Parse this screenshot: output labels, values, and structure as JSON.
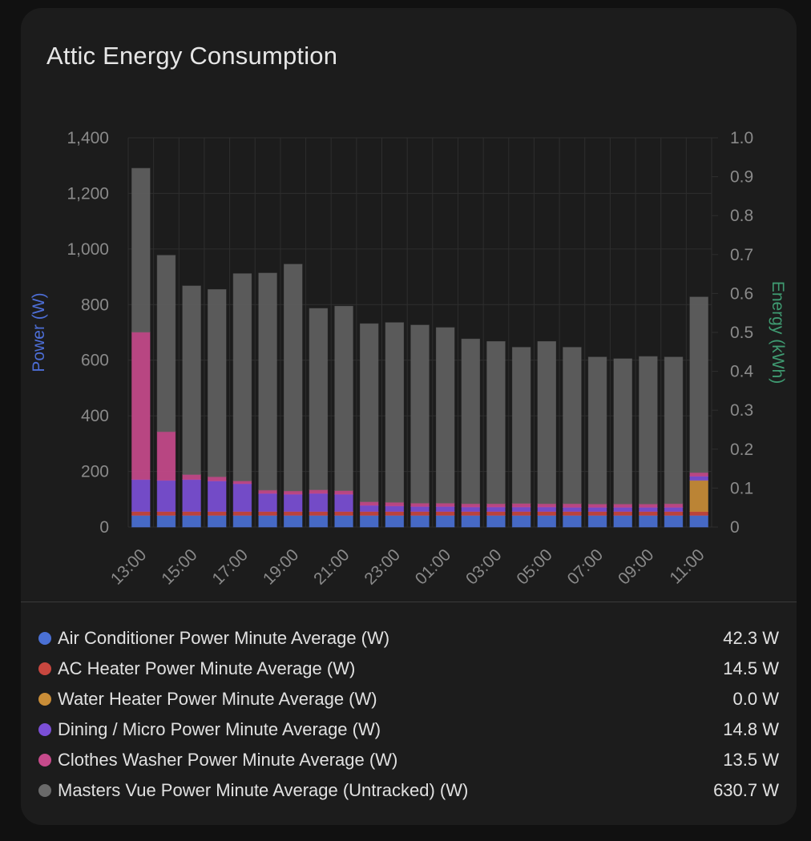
{
  "card": {
    "title": "Attic Energy Consumption"
  },
  "colors": {
    "background": "#1c1c1c",
    "grid": "#2e2e2e",
    "tick_text": "#8a8a8a",
    "left_axis_label": "#4d6ed6",
    "right_axis_label": "#3f9a71"
  },
  "chart_data": {
    "type": "bar",
    "stacked": true,
    "categories": [
      "13:00",
      "14:00",
      "15:00",
      "16:00",
      "17:00",
      "18:00",
      "19:00",
      "20:00",
      "21:00",
      "22:00",
      "23:00",
      "00:00",
      "01:00",
      "02:00",
      "03:00",
      "04:00",
      "05:00",
      "06:00",
      "07:00",
      "08:00",
      "09:00",
      "10:00",
      "11:00"
    ],
    "x_tick_labels": [
      "13:00",
      "15:00",
      "17:00",
      "19:00",
      "21:00",
      "23:00",
      "01:00",
      "03:00",
      "05:00",
      "07:00",
      "09:00",
      "11:00"
    ],
    "ylabel": "Power (W)",
    "ylim": [
      0,
      1400
    ],
    "yticks": [
      0,
      200,
      400,
      600,
      800,
      1000,
      1200,
      1400
    ],
    "ytick_labels": [
      "0",
      "200",
      "400",
      "600",
      "800",
      "1,000",
      "1,200",
      "1,400"
    ],
    "y2label": "Energy (kWh)",
    "y2lim": [
      0,
      1.0
    ],
    "y2ticks": [
      0,
      0.1,
      0.2,
      0.3,
      0.4,
      0.5,
      0.6,
      0.7,
      0.8,
      0.9,
      1.0
    ],
    "y2tick_labels": [
      "0",
      "0.1",
      "0.2",
      "0.3",
      "0.4",
      "0.5",
      "0.6",
      "0.7",
      "0.8",
      "0.9",
      "1.0"
    ],
    "grid": true,
    "legend_position": "bottom",
    "series": [
      {
        "name": "Air Conditioner Power Minute Average (W)",
        "color": "#4a70d4",
        "values": [
          42,
          42,
          42,
          42,
          42,
          42,
          42,
          42,
          42,
          42,
          42,
          42,
          42,
          42,
          42,
          42,
          42,
          42,
          42,
          42,
          42,
          42,
          42
        ]
      },
      {
        "name": "AC Heater Power Minute Average (W)",
        "color": "#c8473f",
        "values": [
          14,
          14,
          14,
          14,
          14,
          14,
          14,
          14,
          14,
          14,
          14,
          14,
          14,
          14,
          14,
          14,
          14,
          14,
          14,
          14,
          14,
          14,
          14
        ]
      },
      {
        "name": "Water Heater Power Minute Average (W)",
        "color": "#c98d37",
        "values": [
          0,
          0,
          0,
          0,
          0,
          0,
          0,
          0,
          0,
          0,
          0,
          0,
          0,
          0,
          0,
          0,
          0,
          0,
          0,
          0,
          0,
          0,
          112
        ]
      },
      {
        "name": "Dining / Micro Power Minute Average (W)",
        "color": "#7b4fd6",
        "values": [
          115,
          112,
          115,
          110,
          100,
          65,
          62,
          65,
          62,
          22,
          20,
          18,
          18,
          16,
          16,
          16,
          16,
          15,
          15,
          15,
          15,
          15,
          15
        ]
      },
      {
        "name": "Clothes Washer Power Minute Average (W)",
        "color": "#c64a8b",
        "values": [
          530,
          175,
          18,
          15,
          10,
          12,
          12,
          13,
          13,
          13,
          13,
          12,
          12,
          12,
          12,
          13,
          12,
          13,
          12,
          12,
          12,
          13,
          13
        ]
      },
      {
        "name": "Masters Vue Power Minute Average (Untracked) (W)",
        "color": "#5f5f5f",
        "values": [
          589,
          634,
          678,
          673,
          745,
          780,
          815,
          652,
          663,
          640,
          646,
          640,
          631,
          592,
          583,
          561,
          583,
          562,
          528,
          522,
          530,
          527,
          631
        ]
      }
    ]
  },
  "legend": {
    "items": [
      {
        "name": "Air Conditioner Power Minute Average (W)",
        "value": "42.3 W",
        "color": "#4a70d4"
      },
      {
        "name": "AC Heater Power Minute Average (W)",
        "value": "14.5 W",
        "color": "#c8473f"
      },
      {
        "name": "Water Heater Power Minute Average (W)",
        "value": "0.0 W",
        "color": "#c98d37"
      },
      {
        "name": "Dining / Micro Power Minute Average (W)",
        "value": "14.8 W",
        "color": "#7b4fd6"
      },
      {
        "name": "Clothes Washer Power Minute Average (W)",
        "value": "13.5 W",
        "color": "#c64a8b"
      },
      {
        "name": "Masters Vue Power Minute Average (Untracked) (W)",
        "value": "630.7 W",
        "color": "#6a6a6a"
      }
    ]
  }
}
